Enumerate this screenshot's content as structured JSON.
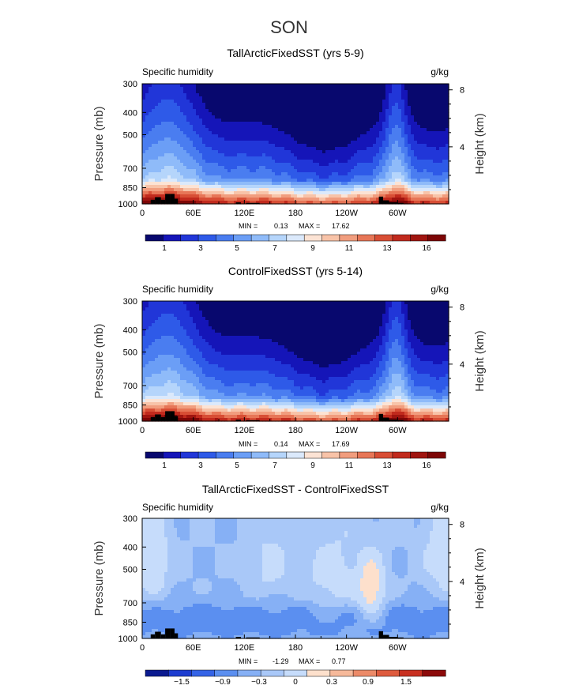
{
  "figure": {
    "season": "SON"
  },
  "colors": {
    "full": [
      "#08086e",
      "#1515b8",
      "#2136d8",
      "#2e5ae8",
      "#4a7df0",
      "#6b9ef6",
      "#8fbbf9",
      "#b5d5fb",
      "#dbe9fb",
      "#fce3d4",
      "#f8c3a8",
      "#f19d7e",
      "#e77657",
      "#d84e35",
      "#c12a1d",
      "#a01510",
      "#7d0606"
    ],
    "diff": [
      "#0a1a90",
      "#1c3cd0",
      "#3463e6",
      "#5b8ff0",
      "#86b0f5",
      "#a9c8f8",
      "#c6dcfb",
      "#fde0cc",
      "#f6b99a",
      "#ec8a68",
      "#de5b3e",
      "#c83020",
      "#8c0a0a"
    ],
    "land": "#000000"
  },
  "panels": [
    {
      "title": "TallArcticFixedSST (yrs 5-9)",
      "left_label": "Specific humidity",
      "right_label": "g/kg",
      "min_label": "MIN =",
      "min": "0.13",
      "max_label": "MAX =",
      "max": "17.62",
      "ylabel": "Pressure (mb)",
      "y2label": "Height (km)",
      "pressure_ticks": [
        "300",
        "400",
        "500",
        "700",
        "850",
        "1000"
      ],
      "height_ticks": [
        "8",
        "4"
      ],
      "x_ticks": [
        "0",
        "60E",
        "120E",
        "180",
        "120W",
        "60W"
      ],
      "colorbar_labels": [
        "1",
        "3",
        "5",
        "7",
        "9",
        "11",
        "13",
        "16"
      ]
    },
    {
      "title": "ControlFixedSST (yrs 5-14)",
      "left_label": "Specific humidity",
      "right_label": "g/kg",
      "min_label": "MIN =",
      "min": "0.14",
      "max_label": "MAX =",
      "max": "17.69",
      "ylabel": "Pressure (mb)",
      "y2label": "Height (km)",
      "pressure_ticks": [
        "300",
        "400",
        "500",
        "700",
        "850",
        "1000"
      ],
      "height_ticks": [
        "8",
        "4"
      ],
      "x_ticks": [
        "0",
        "60E",
        "120E",
        "180",
        "120W",
        "60W"
      ],
      "colorbar_labels": [
        "1",
        "3",
        "5",
        "7",
        "9",
        "11",
        "13",
        "16"
      ]
    },
    {
      "title": "TallArcticFixedSST - ControlFixedSST",
      "left_label": "Specific humidity",
      "right_label": "g/kg",
      "min_label": "MIN =",
      "min": "-1.29",
      "max_label": "MAX =",
      "max": "0.77",
      "ylabel": "Pressure (mb)",
      "y2label": "Height (km)",
      "pressure_ticks": [
        "300",
        "400",
        "500",
        "700",
        "850",
        "1000"
      ],
      "height_ticks": [
        "8",
        "4"
      ],
      "x_ticks": [
        "0",
        "60E",
        "120E",
        "180",
        "120W",
        "60W"
      ],
      "colorbar_labels": [
        "−1.5",
        "−0.9",
        "−0.3",
        "0",
        "0.3",
        "0.9",
        "1.5"
      ]
    }
  ],
  "chart_data": [
    {
      "type": "heatmap",
      "title": "TallArcticFixedSST (yrs 5-9)",
      "variable": "Specific humidity",
      "units": "g/kg",
      "xlabel": "",
      "ylabel": "Pressure (mb)",
      "y2label": "Height (km)",
      "x_ticks": [
        "0",
        "60E",
        "120E",
        "180",
        "120W",
        "60W"
      ],
      "ylim": [
        1000,
        300
      ],
      "y_scale": "log-pressure",
      "min": 0.13,
      "max": 17.62,
      "levels": [
        1,
        2,
        3,
        4,
        5,
        6,
        7,
        8,
        9,
        10,
        11,
        12,
        13,
        14,
        15,
        16
      ],
      "colorbar_labels": [
        1,
        3,
        5,
        7,
        9,
        11,
        13,
        16
      ]
    },
    {
      "type": "heatmap",
      "title": "ControlFixedSST (yrs 5-14)",
      "variable": "Specific humidity",
      "units": "g/kg",
      "xlabel": "",
      "ylabel": "Pressure (mb)",
      "y2label": "Height (km)",
      "x_ticks": [
        "0",
        "60E",
        "120E",
        "180",
        "120W",
        "60W"
      ],
      "ylim": [
        1000,
        300
      ],
      "y_scale": "log-pressure",
      "min": 0.14,
      "max": 17.69,
      "levels": [
        1,
        2,
        3,
        4,
        5,
        6,
        7,
        8,
        9,
        10,
        11,
        12,
        13,
        14,
        15,
        16
      ],
      "colorbar_labels": [
        1,
        3,
        5,
        7,
        9,
        11,
        13,
        16
      ]
    },
    {
      "type": "heatmap",
      "title": "TallArcticFixedSST - ControlFixedSST",
      "variable": "Specific humidity",
      "units": "g/kg",
      "xlabel": "",
      "ylabel": "Pressure (mb)",
      "y2label": "Height (km)",
      "x_ticks": [
        "0",
        "60E",
        "120E",
        "180",
        "120W",
        "60W"
      ],
      "ylim": [
        1000,
        300
      ],
      "y_scale": "log-pressure",
      "min": -1.29,
      "max": 0.77,
      "levels": [
        -1.8,
        -1.5,
        -1.2,
        -0.9,
        -0.6,
        -0.3,
        0,
        0.3,
        0.6,
        0.9,
        1.2,
        1.5
      ],
      "colorbar_labels": [
        -1.5,
        -0.9,
        -0.3,
        0,
        0.3,
        0.9,
        1.5
      ]
    }
  ]
}
